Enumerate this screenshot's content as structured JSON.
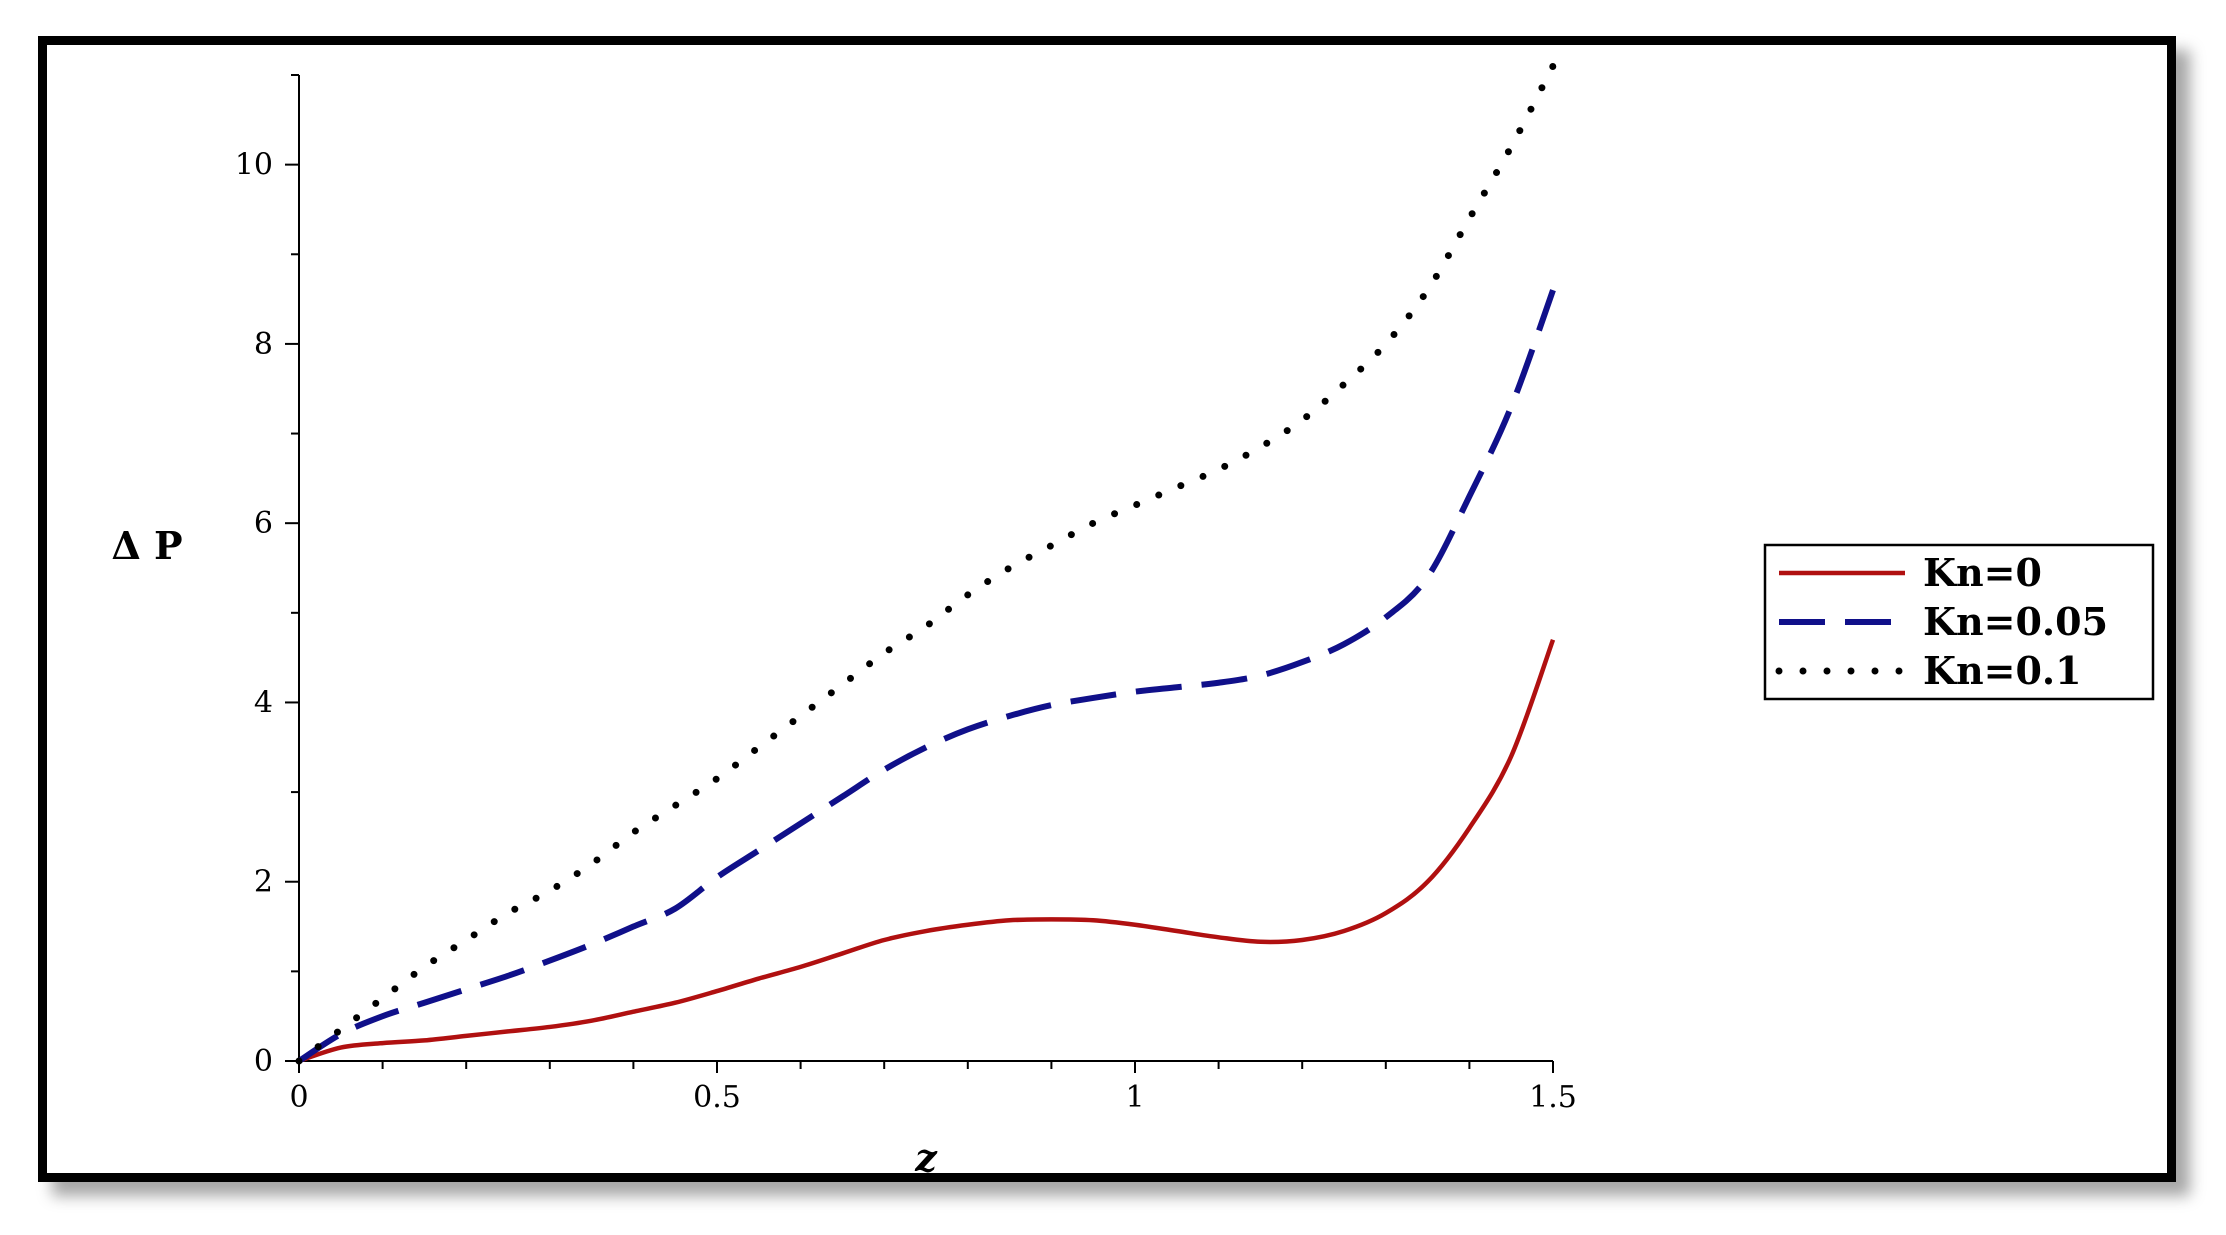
{
  "chart_data": {
    "type": "line",
    "title": "",
    "xlabel": "z",
    "ylabel": "Δ P",
    "xlim": [
      0,
      1.5
    ],
    "ylim": [
      0,
      11
    ],
    "x_ticks": [
      0,
      0.5,
      1,
      1.5
    ],
    "x_tick_labels": [
      "0",
      "0.5",
      "1",
      "1.5"
    ],
    "y_ticks": [
      0,
      2,
      4,
      6,
      8,
      10
    ],
    "y_tick_labels": [
      "0",
      "2",
      "4",
      "6",
      "8",
      "10"
    ],
    "grid": false,
    "legend_position": "right",
    "x": [
      0,
      0.05,
      0.1,
      0.15,
      0.2,
      0.25,
      0.3,
      0.35,
      0.4,
      0.45,
      0.5,
      0.55,
      0.6,
      0.65,
      0.7,
      0.75,
      0.8,
      0.85,
      0.9,
      0.95,
      1.0,
      1.05,
      1.1,
      1.15,
      1.2,
      1.25,
      1.3,
      1.35,
      1.4,
      1.45,
      1.5
    ],
    "series": [
      {
        "name": "Kn=0",
        "color": "#b01010",
        "style": "solid",
        "values": [
          0,
          0.15,
          0.2,
          0.23,
          0.28,
          0.33,
          0.38,
          0.45,
          0.55,
          0.65,
          0.78,
          0.92,
          1.05,
          1.2,
          1.35,
          1.45,
          1.52,
          1.57,
          1.58,
          1.57,
          1.52,
          1.45,
          1.38,
          1.33,
          1.35,
          1.45,
          1.65,
          2.0,
          2.6,
          3.4,
          4.7
        ]
      },
      {
        "name": "Kn=0.05",
        "color": "#10108a",
        "style": "dashed",
        "values": [
          0,
          0.3,
          0.5,
          0.65,
          0.8,
          0.95,
          1.12,
          1.3,
          1.5,
          1.7,
          2.05,
          2.35,
          2.65,
          2.95,
          3.25,
          3.5,
          3.7,
          3.85,
          3.97,
          4.05,
          4.12,
          4.17,
          4.22,
          4.3,
          4.45,
          4.65,
          4.95,
          5.4,
          6.3,
          7.3,
          8.6
        ]
      },
      {
        "name": "Kn=0.1",
        "color": "#000000",
        "style": "dotted",
        "values": [
          0,
          0.35,
          0.7,
          1.05,
          1.35,
          1.65,
          1.9,
          2.2,
          2.55,
          2.85,
          3.15,
          3.5,
          3.85,
          4.2,
          4.55,
          4.85,
          5.2,
          5.5,
          5.75,
          6.0,
          6.2,
          6.4,
          6.6,
          6.85,
          7.15,
          7.55,
          8.0,
          8.6,
          9.4,
          10.2,
          11.1
        ]
      }
    ]
  }
}
